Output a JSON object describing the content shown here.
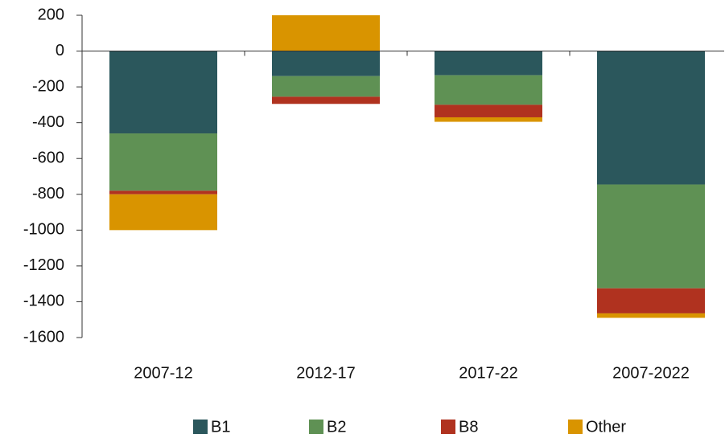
{
  "chart_data": {
    "type": "stacked_bar",
    "categories": [
      "2007-12",
      "2012-17",
      "2017-22",
      "2007-2022"
    ],
    "series": [
      {
        "name": "B1",
        "color": "#2b575c",
        "values": [
          -460,
          -140,
          -135,
          -745
        ]
      },
      {
        "name": "B2",
        "color": "#5f9154",
        "values": [
          -320,
          -115,
          -165,
          -580
        ]
      },
      {
        "name": "B8",
        "color": "#b0321f",
        "values": [
          -20,
          -40,
          -70,
          -140
        ]
      },
      {
        "name": "Other",
        "color": "#d99400",
        "values": [
          -200,
          200,
          -25,
          -25
        ]
      }
    ],
    "ylim": [
      -1600,
      200
    ],
    "yticks": [
      -1600,
      -1400,
      -1200,
      -1000,
      -800,
      -600,
      -400,
      -200,
      0,
      200
    ],
    "grid": false,
    "legend": "bottom"
  }
}
